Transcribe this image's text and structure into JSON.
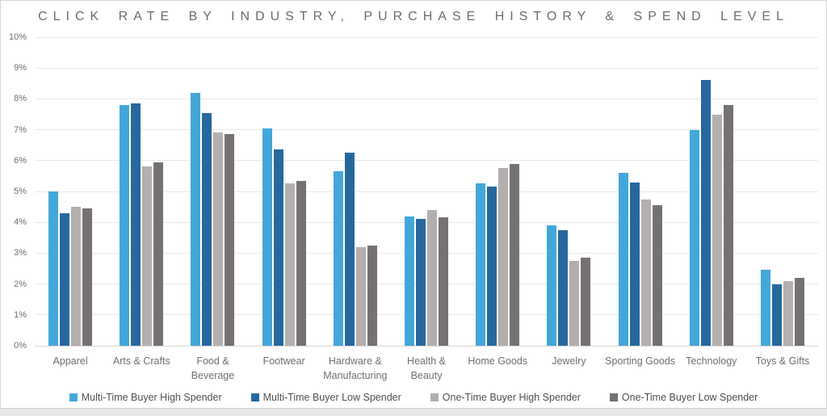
{
  "title": "Click Rate by Industry, Purchase History & Spend Level",
  "chart_data": {
    "type": "bar",
    "title": "CLICK RATE BY INDUSTRY, PURCHASE HISTORY & SPEND LEVEL",
    "xlabel": "",
    "ylabel": "",
    "ylim": [
      0,
      10
    ],
    "grid": true,
    "legend_position": "bottom",
    "y_ticks": [
      "10%",
      "9%",
      "8%",
      "7%",
      "6%",
      "5%",
      "4%",
      "3%",
      "2%",
      "1%",
      "0%"
    ],
    "categories": [
      "Apparel",
      "Arts & Crafts",
      "Food &\nBeverage",
      "Footwear",
      "Hardware &\nManufacturing",
      "Health & Beauty",
      "Home Goods",
      "Jewelry",
      "Sporting Goods",
      "Technology",
      "Toys & Gifts"
    ],
    "series": [
      {
        "name": "Multi-Time Buyer High Spender",
        "color": "#43a7da",
        "values": [
          5.0,
          7.8,
          8.2,
          7.05,
          5.65,
          4.2,
          5.25,
          3.9,
          5.6,
          7.0,
          2.45
        ]
      },
      {
        "name": "Multi-Time Buyer Low Spender",
        "color": "#26689e",
        "values": [
          4.3,
          7.85,
          7.55,
          6.35,
          6.25,
          4.1,
          5.15,
          3.75,
          5.3,
          8.6,
          2.0
        ]
      },
      {
        "name": "One-Time Buyer High Spender",
        "color": "#b3afae",
        "values": [
          4.5,
          5.8,
          6.9,
          5.25,
          3.2,
          4.4,
          5.75,
          2.75,
          4.75,
          7.5,
          2.1
        ]
      },
      {
        "name": "One-Time Buyer Low Spender",
        "color": "#767171",
        "values": [
          4.45,
          5.95,
          6.85,
          5.35,
          3.25,
          4.15,
          5.9,
          2.85,
          4.55,
          7.8,
          2.2
        ]
      }
    ]
  },
  "colors": {
    "grid": "#e8e8e8",
    "baseline": "#d6d6d5",
    "axis_text": "#6f6f6f",
    "title_text": "#6c6c6c",
    "card_background": "#ffffff",
    "page_background": "#e9e9e8"
  }
}
